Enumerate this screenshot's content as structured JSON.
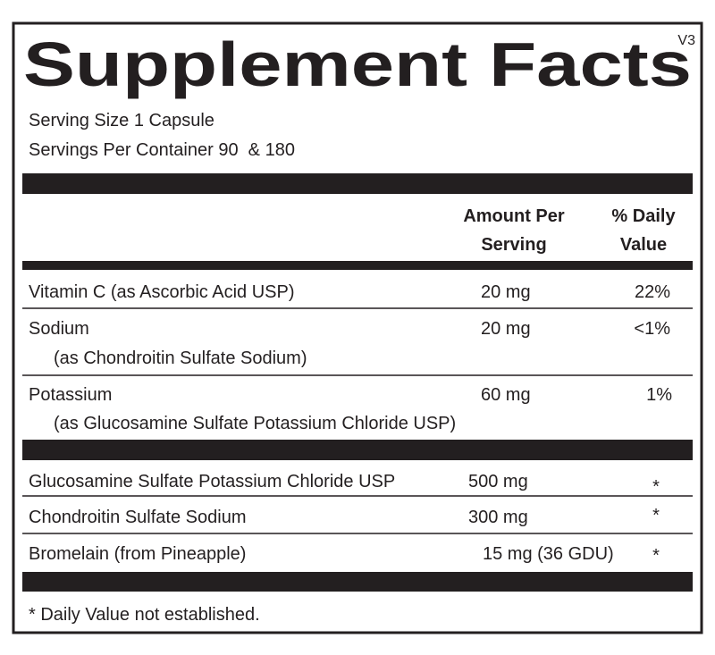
{
  "header": {
    "title": "Supplement Facts",
    "version": "V3"
  },
  "serving": {
    "size": "Serving Size 1 Capsule",
    "per_container": "Servings Per Container 90  & 180"
  },
  "columns": {
    "amount": [
      "Amount Per",
      "Serving"
    ],
    "daily": [
      "% Daily",
      "Value"
    ]
  },
  "rows": [
    {
      "name": "Vitamin C (as Ascorbic Acid USP)",
      "amount": "20 mg",
      "daily": "22%"
    },
    {
      "name": "Sodium",
      "detail": "(as Chondroitin Sulfate Sodium)",
      "amount": "20 mg",
      "daily": "<1%"
    },
    {
      "name": "Potassium",
      "detail": "(as Glucosamine Sulfate Potassium Chloride USP)",
      "amount": "60 mg",
      "daily": "1%"
    }
  ],
  "other_rows": [
    {
      "name": "Glucosamine Sulfate Potassium Chloride USP",
      "amount": "500 mg",
      "daily": "*"
    },
    {
      "name": "Chondroitin Sulfate Sodium",
      "amount": "300 mg",
      "daily": "*"
    },
    {
      "name": "Bromelain (from Pineapple)",
      "amount": "15 mg (36 GDU)",
      "daily": "*"
    }
  ],
  "footnote": "* Daily Value not established."
}
